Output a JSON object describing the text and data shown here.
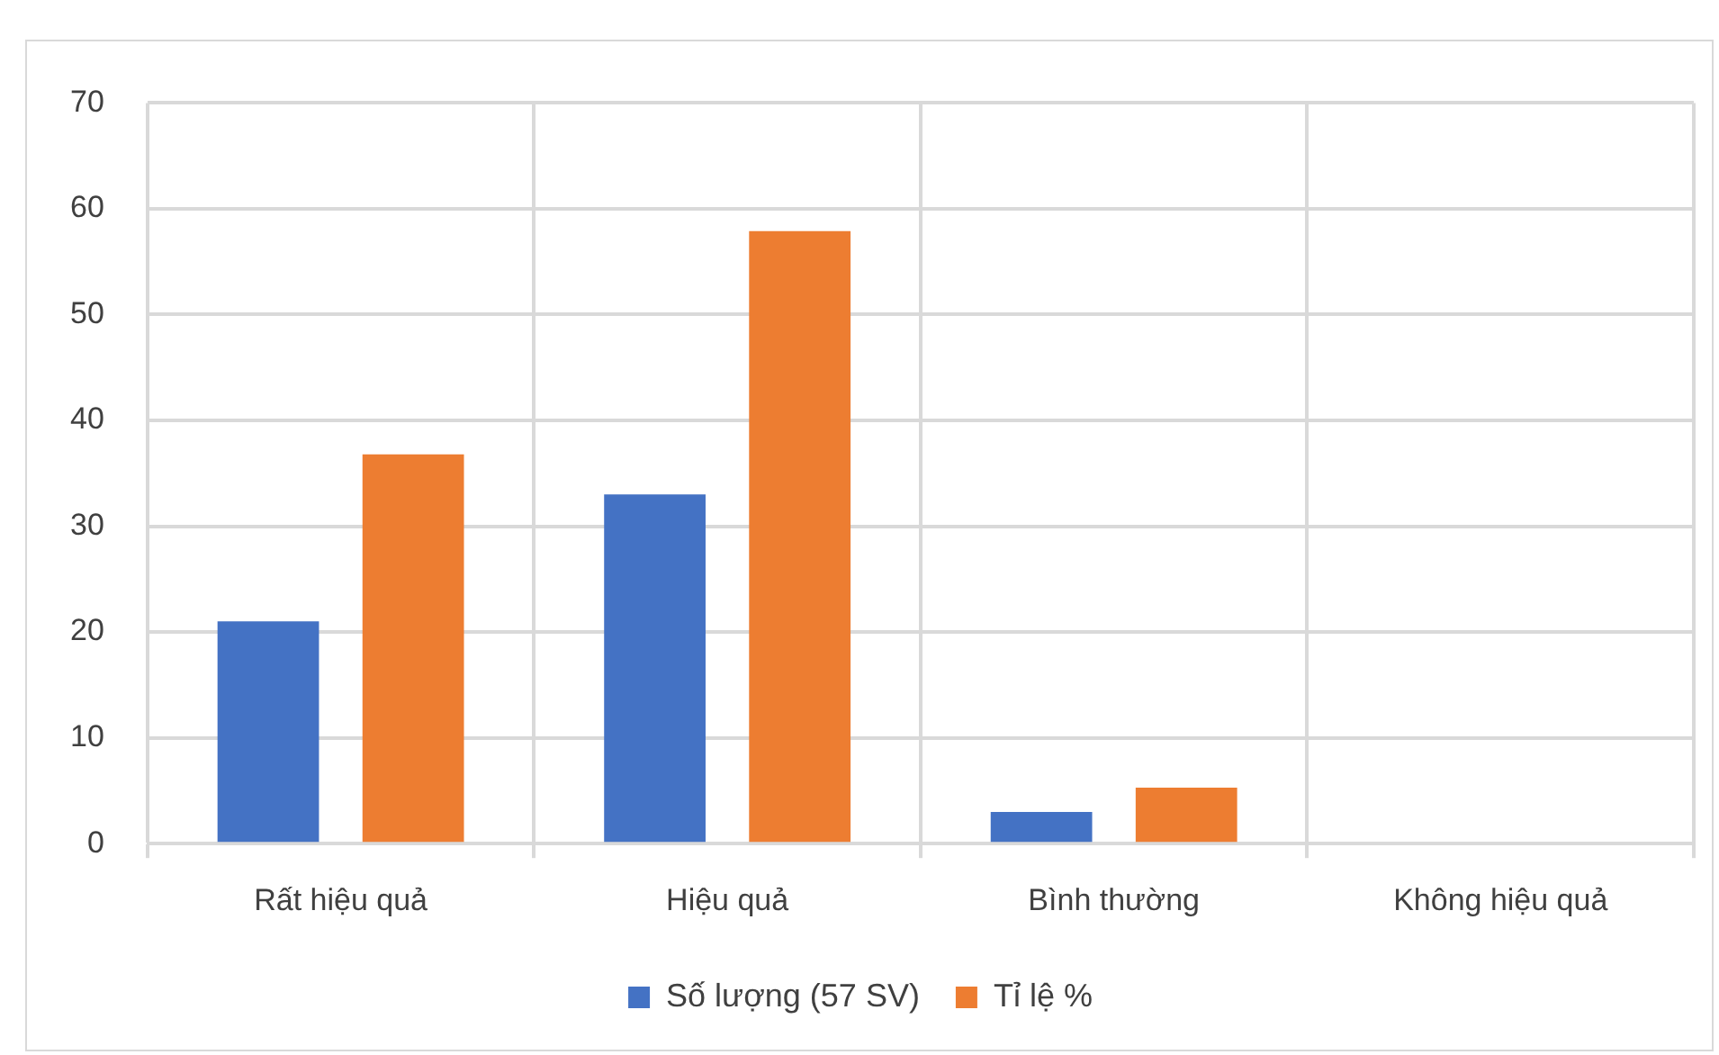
{
  "chart_data": {
    "type": "bar",
    "categories": [
      "Rất hiệu quả",
      "Hiệu quả",
      "Bình thường",
      "Không hiệu quả"
    ],
    "series": [
      {
        "name": "Số lượng (57 SV)",
        "color": "#4472c4",
        "values": [
          21,
          33,
          3,
          0
        ]
      },
      {
        "name": "Tỉ lệ %",
        "color": "#ed7d31",
        "values": [
          36.8,
          57.9,
          5.3,
          0
        ]
      }
    ],
    "ylim": [
      0,
      70
    ],
    "yticks": [
      0,
      10,
      20,
      30,
      40,
      50,
      60,
      70
    ],
    "grid": true,
    "legend": "bottom"
  }
}
